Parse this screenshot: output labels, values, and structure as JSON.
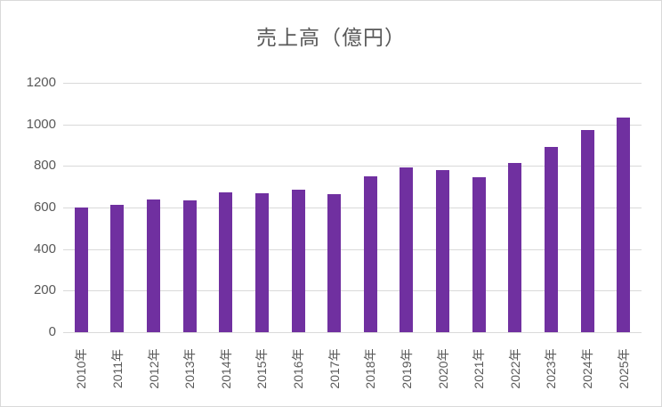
{
  "chart_data": {
    "type": "bar",
    "title": "売上高（億円）",
    "categories": [
      "2010年",
      "2011年",
      "2012年",
      "2013年",
      "2014年",
      "2015年",
      "2016年",
      "2017年",
      "2018年",
      "2019年",
      "2020年",
      "2021年",
      "2022年",
      "2023年",
      "2024年",
      "2025年"
    ],
    "values": [
      600,
      615,
      640,
      635,
      675,
      670,
      685,
      665,
      750,
      795,
      780,
      745,
      815,
      890,
      975,
      1035
    ],
    "xlabel": "",
    "ylabel": "",
    "ylim": [
      0,
      1200
    ],
    "yticks": [
      0,
      200,
      400,
      600,
      800,
      1000,
      1200
    ],
    "grid": true,
    "legend": false,
    "x_label_rotation": -90
  },
  "colors": {
    "bar": "#7030A0",
    "gridline": "#D9D9D9",
    "axis_text": "#595959",
    "title_text": "#595959",
    "frame_border": "#D9D9D9",
    "background": "#FFFFFF"
  }
}
